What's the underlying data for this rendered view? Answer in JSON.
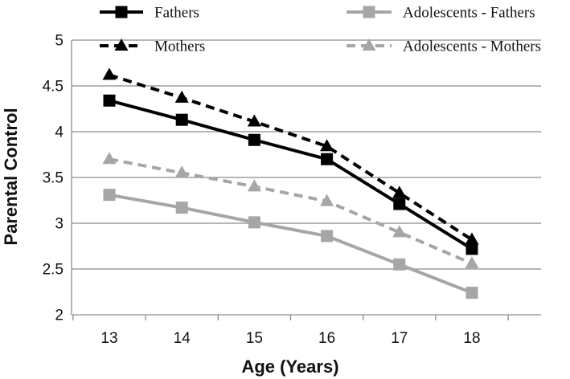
{
  "chart_data": {
    "type": "line",
    "title": "",
    "xlabel": "Age (Years)",
    "ylabel": "Parental Control",
    "x": [
      13,
      14,
      15,
      16,
      17,
      18
    ],
    "x_tick_labels": [
      "13",
      "14",
      "15",
      "16",
      "17",
      "18"
    ],
    "ylim": [
      2,
      5
    ],
    "y_ticks": [
      2,
      2.5,
      3,
      3.5,
      4,
      4.5,
      5
    ],
    "y_tick_labels": [
      "2",
      "2.5",
      "3",
      "3.5",
      "4",
      "4.5",
      "5"
    ],
    "grid": "horizontal",
    "legend_position": "top",
    "series": [
      {
        "name": "Fathers",
        "values": [
          4.34,
          4.13,
          3.91,
          3.7,
          3.21,
          2.72
        ],
        "color": "#000000",
        "dash": "solid",
        "marker": "square"
      },
      {
        "name": "Mothers",
        "values": [
          4.62,
          4.37,
          4.11,
          3.84,
          3.33,
          2.82
        ],
        "color": "#000000",
        "dash": "dashed",
        "marker": "triangle"
      },
      {
        "name": "Adolescents - Fathers",
        "values": [
          3.31,
          3.17,
          3.01,
          2.86,
          2.55,
          2.24
        ],
        "color": "#a6a6a6",
        "dash": "solid",
        "marker": "square"
      },
      {
        "name": "Adolescents - Mothers",
        "values": [
          3.7,
          3.55,
          3.4,
          3.24,
          2.9,
          2.56
        ],
        "color": "#a6a6a6",
        "dash": "dashed",
        "marker": "triangle"
      }
    ]
  }
}
